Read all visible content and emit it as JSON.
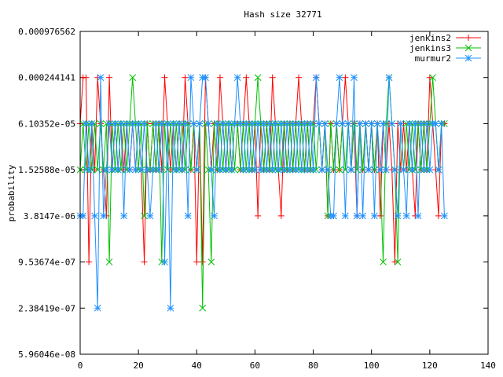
{
  "chart_data": {
    "type": "line",
    "title": "Hash size 32771",
    "ylabel": "probability",
    "xlabel": "",
    "x_ticks": [
      "0",
      "20",
      "40",
      "60",
      "80",
      "100",
      "120",
      "140"
    ],
    "xlim": [
      0,
      140
    ],
    "y_ticks": [
      "0.000976562",
      "0.000244141",
      "6.10352e-05",
      "1.52588e-05",
      "3.8147e-06",
      "9.53674e-07",
      "2.38419e-07",
      "5.96046e-08"
    ],
    "y_scale": "log",
    "ylim": [
      5.96046e-08,
      0.000976562
    ],
    "legend_position": "top-right",
    "grid": false,
    "series": [
      {
        "name": "jenkins2",
        "color": "#ff0000",
        "marker": "plus",
        "x": [
          0,
          1,
          2,
          3,
          4,
          5,
          6,
          7,
          8,
          9,
          10,
          11,
          12,
          13,
          14,
          15,
          16,
          17,
          18,
          19,
          20,
          21,
          22,
          23,
          24,
          25,
          26,
          27,
          28,
          29,
          30,
          31,
          32,
          33,
          34,
          35,
          36,
          37,
          38,
          39,
          40,
          41,
          42,
          43,
          44,
          45,
          46,
          47,
          48,
          49,
          50,
          51,
          52,
          53,
          54,
          55,
          56,
          57,
          58,
          59,
          60,
          61,
          62,
          63,
          64,
          65,
          66,
          67,
          68,
          69,
          70,
          71,
          72,
          73,
          74,
          75,
          76,
          77,
          78,
          79,
          80,
          81,
          82,
          83,
          84,
          85,
          86,
          87,
          88,
          89,
          90,
          91,
          92,
          93,
          94,
          95,
          96,
          97,
          98,
          99,
          100,
          101,
          102,
          103,
          104,
          105,
          106,
          107,
          108,
          109,
          110,
          111,
          112,
          113,
          114,
          115,
          116,
          117,
          118,
          119,
          120,
          121,
          122,
          123,
          124,
          125
        ],
        "y": [
          6.10352e-05,
          0.000244141,
          0.000244141,
          9.53674e-07,
          6.10352e-05,
          1.52588e-05,
          0.000244141,
          6.10352e-05,
          1.52588e-05,
          3.8147e-06,
          0.000244141,
          1.52588e-05,
          6.10352e-05,
          1.52588e-05,
          6.10352e-05,
          1.52588e-05,
          6.10352e-05,
          1.52588e-05,
          6.10352e-05,
          1.52588e-05,
          6.10352e-05,
          1.52588e-05,
          9.53674e-07,
          6.10352e-05,
          1.52588e-05,
          6.10352e-05,
          1.52588e-05,
          6.10352e-05,
          1.52588e-05,
          0.000244141,
          6.10352e-05,
          1.52588e-05,
          6.10352e-05,
          1.52588e-05,
          6.10352e-05,
          1.52588e-05,
          0.000244141,
          6.10352e-05,
          1.52588e-05,
          6.10352e-05,
          9.53674e-07,
          6.10352e-05,
          9.53674e-07,
          0.000244141,
          6.10352e-05,
          1.52588e-05,
          6.10352e-05,
          1.52588e-05,
          0.000244141,
          6.10352e-05,
          1.52588e-05,
          6.10352e-05,
          1.52588e-05,
          6.10352e-05,
          6.10352e-05,
          1.52588e-05,
          6.10352e-05,
          0.000244141,
          6.10352e-05,
          1.52588e-05,
          6.10352e-05,
          3.8147e-06,
          6.10352e-05,
          1.52588e-05,
          6.10352e-05,
          1.52588e-05,
          0.000244141,
          6.10352e-05,
          1.52588e-05,
          3.8147e-06,
          6.10352e-05,
          1.52588e-05,
          6.10352e-05,
          1.52588e-05,
          6.10352e-05,
          0.000244141,
          6.10352e-05,
          1.52588e-05,
          6.10352e-05,
          1.52588e-05,
          6.10352e-05,
          0.000244141,
          6.10352e-05,
          1.52588e-05,
          6.10352e-05,
          3.8147e-06,
          6.10352e-05,
          1.52588e-05,
          6.10352e-05,
          1.52588e-05,
          6.10352e-05,
          0.000244141,
          6.10352e-05,
          1.52588e-05,
          6.10352e-05,
          3.8147e-06,
          6.10352e-05,
          1.52588e-05,
          6.10352e-05,
          1.52588e-05,
          6.10352e-05,
          1.52588e-05,
          6.10352e-05,
          3.8147e-06,
          6.10352e-05,
          1.52588e-05,
          6.10352e-05,
          1.52588e-05,
          9.53674e-07,
          6.10352e-05,
          1.52588e-05,
          6.10352e-05,
          1.52588e-05,
          6.10352e-05,
          1.52588e-05,
          3.8147e-06,
          6.10352e-05,
          1.52588e-05,
          6.10352e-05,
          1.52588e-05,
          0.000244141,
          6.10352e-05,
          1.52588e-05,
          3.8147e-06,
          6.10352e-05,
          6.10352e-05
        ]
      },
      {
        "name": "jenkins3",
        "color": "#00c000",
        "marker": "x",
        "x": [
          0,
          1,
          2,
          3,
          4,
          5,
          6,
          7,
          8,
          9,
          10,
          11,
          12,
          13,
          14,
          15,
          16,
          17,
          18,
          19,
          20,
          21,
          22,
          23,
          24,
          25,
          26,
          27,
          28,
          29,
          30,
          31,
          32,
          33,
          34,
          35,
          36,
          37,
          38,
          39,
          40,
          41,
          42,
          43,
          44,
          45,
          46,
          47,
          48,
          49,
          50,
          51,
          52,
          53,
          54,
          55,
          56,
          57,
          58,
          59,
          60,
          61,
          62,
          63,
          64,
          65,
          66,
          67,
          68,
          69,
          70,
          71,
          72,
          73,
          74,
          75,
          76,
          77,
          78,
          79,
          80,
          81,
          82,
          83,
          84,
          85,
          86,
          87,
          88,
          89,
          90,
          91,
          92,
          93,
          94,
          95,
          96,
          97,
          98,
          99,
          100,
          101,
          102,
          103,
          104,
          105,
          106,
          107,
          108,
          109,
          110,
          111,
          112,
          113,
          114,
          115,
          116,
          117,
          118,
          119,
          120,
          121,
          122,
          123,
          124,
          125
        ],
        "y": [
          1.52588e-05,
          6.10352e-05,
          1.52588e-05,
          6.10352e-05,
          1.52588e-05,
          6.10352e-05,
          1.52588e-05,
          6.10352e-05,
          1.52588e-05,
          6.10352e-05,
          9.53674e-07,
          6.10352e-05,
          1.52588e-05,
          6.10352e-05,
          1.52588e-05,
          6.10352e-05,
          1.52588e-05,
          6.10352e-05,
          0.000244141,
          6.10352e-05,
          1.52588e-05,
          6.10352e-05,
          3.8147e-06,
          6.10352e-05,
          1.52588e-05,
          6.10352e-05,
          1.52588e-05,
          6.10352e-05,
          9.53674e-07,
          6.10352e-05,
          1.52588e-05,
          6.10352e-05,
          1.52588e-05,
          6.10352e-05,
          1.52588e-05,
          6.10352e-05,
          1.52588e-05,
          6.10352e-05,
          1.52588e-05,
          6.10352e-05,
          1.52588e-05,
          6.10352e-05,
          2.38419e-07,
          6.10352e-05,
          1.52588e-05,
          9.53674e-07,
          6.10352e-05,
          1.52588e-05,
          6.10352e-05,
          1.52588e-05,
          6.10352e-05,
          1.52588e-05,
          6.10352e-05,
          1.52588e-05,
          6.10352e-05,
          1.52588e-05,
          6.10352e-05,
          1.52588e-05,
          6.10352e-05,
          1.52588e-05,
          6.10352e-05,
          0.000244141,
          6.10352e-05,
          1.52588e-05,
          6.10352e-05,
          1.52588e-05,
          6.10352e-05,
          1.52588e-05,
          6.10352e-05,
          1.52588e-05,
          6.10352e-05,
          1.52588e-05,
          6.10352e-05,
          1.52588e-05,
          6.10352e-05,
          1.52588e-05,
          6.10352e-05,
          1.52588e-05,
          6.10352e-05,
          1.52588e-05,
          6.10352e-05,
          1.52588e-05,
          6.10352e-05,
          1.52588e-05,
          6.10352e-05,
          3.8147e-06,
          6.10352e-05,
          1.52588e-05,
          6.10352e-05,
          1.52588e-05,
          6.10352e-05,
          1.52588e-05,
          6.10352e-05,
          1.52588e-05,
          6.10352e-05,
          1.52588e-05,
          6.10352e-05,
          1.52588e-05,
          6.10352e-05,
          1.52588e-05,
          6.10352e-05,
          1.52588e-05,
          6.10352e-05,
          1.52588e-05,
          9.53674e-07,
          6.10352e-05,
          0.000244141,
          6.10352e-05,
          1.52588e-05,
          9.53674e-07,
          6.10352e-05,
          1.52588e-05,
          6.10352e-05,
          1.52588e-05,
          6.10352e-05,
          1.52588e-05,
          6.10352e-05,
          1.52588e-05,
          6.10352e-05,
          1.52588e-05,
          6.10352e-05,
          0.000244141,
          6.10352e-05,
          1.52588e-05,
          6.10352e-05,
          6.10352e-05
        ]
      },
      {
        "name": "murmur2",
        "color": "#1e90ff",
        "marker": "star",
        "x": [
          0,
          1,
          2,
          3,
          4,
          5,
          6,
          7,
          8,
          9,
          10,
          11,
          12,
          13,
          14,
          15,
          16,
          17,
          18,
          19,
          20,
          21,
          22,
          23,
          24,
          25,
          26,
          27,
          28,
          29,
          30,
          31,
          32,
          33,
          34,
          35,
          36,
          37,
          38,
          39,
          40,
          41,
          42,
          43,
          44,
          45,
          46,
          47,
          48,
          49,
          50,
          51,
          52,
          53,
          54,
          55,
          56,
          57,
          58,
          59,
          60,
          61,
          62,
          63,
          64,
          65,
          66,
          67,
          68,
          69,
          70,
          71,
          72,
          73,
          74,
          75,
          76,
          77,
          78,
          79,
          80,
          81,
          82,
          83,
          84,
          85,
          86,
          87,
          88,
          89,
          90,
          91,
          92,
          93,
          94,
          95,
          96,
          97,
          98,
          99,
          100,
          101,
          102,
          103,
          104,
          105,
          106,
          107,
          108,
          109,
          110,
          111,
          112,
          113,
          114,
          115,
          116,
          117,
          118,
          119,
          120,
          121,
          122,
          123,
          124,
          125
        ],
        "y": [
          3.8147e-06,
          3.8147e-06,
          6.10352e-05,
          1.52588e-05,
          6.10352e-05,
          3.8147e-06,
          2.38419e-07,
          0.000244141,
          3.8147e-06,
          1.52588e-05,
          6.10352e-05,
          1.52588e-05,
          6.10352e-05,
          1.52588e-05,
          6.10352e-05,
          3.8147e-06,
          6.10352e-05,
          1.52588e-05,
          6.10352e-05,
          1.52588e-05,
          6.10352e-05,
          1.52588e-05,
          6.10352e-05,
          1.52588e-05,
          3.8147e-06,
          1.52588e-05,
          6.10352e-05,
          1.52588e-05,
          6.10352e-05,
          9.53674e-07,
          6.10352e-05,
          2.38419e-07,
          6.10352e-05,
          1.52588e-05,
          6.10352e-05,
          1.52588e-05,
          6.10352e-05,
          3.8147e-06,
          0.000244141,
          6.10352e-05,
          1.52588e-05,
          6.10352e-05,
          0.000244141,
          0.000244141,
          6.10352e-05,
          1.52588e-05,
          3.8147e-06,
          6.10352e-05,
          1.52588e-05,
          6.10352e-05,
          1.52588e-05,
          6.10352e-05,
          1.52588e-05,
          6.10352e-05,
          0.000244141,
          6.10352e-05,
          1.52588e-05,
          6.10352e-05,
          1.52588e-05,
          6.10352e-05,
          1.52588e-05,
          6.10352e-05,
          1.52588e-05,
          6.10352e-05,
          1.52588e-05,
          6.10352e-05,
          1.52588e-05,
          6.10352e-05,
          1.52588e-05,
          6.10352e-05,
          1.52588e-05,
          6.10352e-05,
          1.52588e-05,
          6.10352e-05,
          1.52588e-05,
          6.10352e-05,
          1.52588e-05,
          6.10352e-05,
          1.52588e-05,
          6.10352e-05,
          1.52588e-05,
          0.000244141,
          6.10352e-05,
          1.52588e-05,
          6.10352e-05,
          1.52588e-05,
          3.8147e-06,
          3.8147e-06,
          6.10352e-05,
          0.000244141,
          6.10352e-05,
          3.8147e-06,
          6.10352e-05,
          1.52588e-05,
          0.000244141,
          3.8147e-06,
          6.10352e-05,
          3.8147e-06,
          6.10352e-05,
          1.52588e-05,
          6.10352e-05,
          3.8147e-06,
          6.10352e-05,
          1.52588e-05,
          6.10352e-05,
          1.52588e-05,
          0.000244141,
          6.10352e-05,
          1.52588e-05,
          3.8147e-06,
          6.10352e-05,
          1.52588e-05,
          3.8147e-06,
          6.10352e-05,
          1.52588e-05,
          6.10352e-05,
          3.8147e-06,
          6.10352e-05,
          1.52588e-05,
          6.10352e-05,
          1.52588e-05,
          6.10352e-05,
          6.10352e-05,
          1.52588e-05,
          6.10352e-05,
          3.8147e-06
        ]
      }
    ]
  }
}
